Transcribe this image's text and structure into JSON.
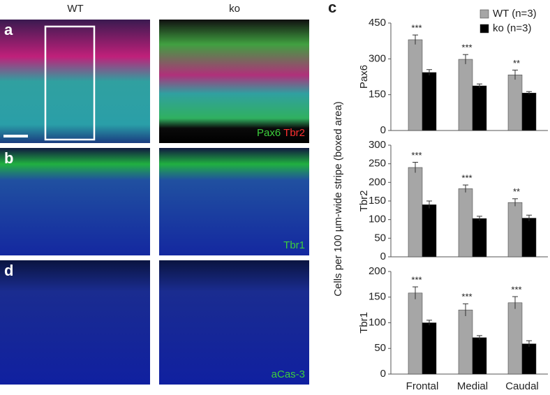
{
  "columns": [
    "WT",
    "ko"
  ],
  "images": [
    {
      "label": "a",
      "stains": [
        {
          "text": "Pax6",
          "color": "#3ccf3c"
        },
        {
          "text": "Tbr2",
          "color": "#ff3030"
        }
      ]
    },
    {
      "label": "b",
      "stains": [
        {
          "text": "Tbr1",
          "color": "#3ccf3c"
        }
      ]
    },
    {
      "label": "d",
      "stains": [
        {
          "text": "aCas-3",
          "color": "#3ccf3c"
        }
      ]
    }
  ],
  "chart_panel_label": "c",
  "shared_ylabel": "Cells per 100 µm-wide stripe (boxed area)",
  "chart_data": [
    {
      "type": "bar",
      "ylabel": "Pax6",
      "ylim": [
        0,
        450
      ],
      "yticks": [
        0,
        150,
        300,
        450
      ],
      "annotations": [
        "***",
        "***",
        "**"
      ],
      "series": [
        {
          "name": "WT (n=3)",
          "color": "#a6a6a6",
          "values": [
            380,
            298,
            233
          ],
          "errors": [
            20,
            20,
            20
          ]
        },
        {
          "name": "ko (n=3)",
          "color": "#000000",
          "values": [
            243,
            187,
            157
          ],
          "errors": [
            12,
            8,
            6
          ]
        }
      ]
    },
    {
      "type": "bar",
      "ylabel": "Tbr2",
      "ylim": [
        0,
        300
      ],
      "yticks": [
        0,
        50,
        100,
        150,
        200,
        250,
        300
      ],
      "annotations": [
        "***",
        "***",
        "**"
      ],
      "series": [
        {
          "color": "#a6a6a6",
          "values": [
            240,
            183,
            146
          ],
          "errors": [
            14,
            10,
            10
          ]
        },
        {
          "color": "#000000",
          "values": [
            140,
            103,
            104
          ],
          "errors": [
            10,
            6,
            8
          ]
        }
      ]
    },
    {
      "type": "bar",
      "ylabel": "Tbr1",
      "ylim": [
        0,
        200
      ],
      "yticks": [
        0,
        50,
        100,
        150,
        200
      ],
      "categories": [
        "Frontal",
        "Medial",
        "Caudal"
      ],
      "annotations": [
        "***",
        "***",
        "***"
      ],
      "series": [
        {
          "color": "#a6a6a6",
          "values": [
            158,
            125,
            139
          ],
          "errors": [
            12,
            12,
            12
          ]
        },
        {
          "color": "#000000",
          "values": [
            100,
            71,
            59
          ],
          "errors": [
            5,
            4,
            6
          ]
        }
      ]
    }
  ]
}
